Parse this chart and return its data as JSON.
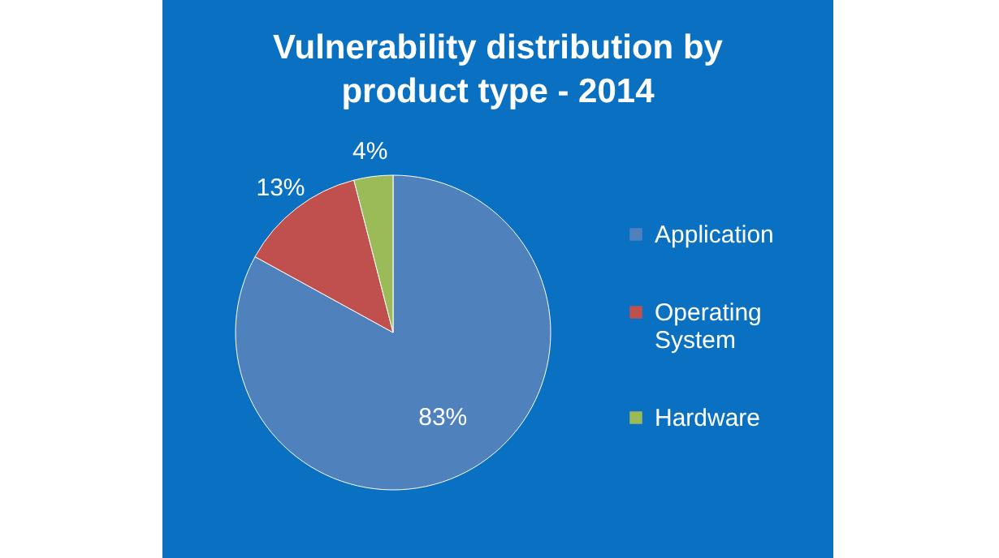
{
  "chart_data": {
    "type": "pie",
    "title": "Vulnerability distribution by product type - 2014",
    "categories": [
      "Application",
      "Operating System",
      "Hardware"
    ],
    "values": [
      83,
      13,
      4
    ],
    "value_labels": [
      "83%",
      "13%",
      "4%"
    ],
    "colors": [
      "#4f81bd",
      "#c0504d",
      "#9bbb59"
    ],
    "legend": "right"
  }
}
